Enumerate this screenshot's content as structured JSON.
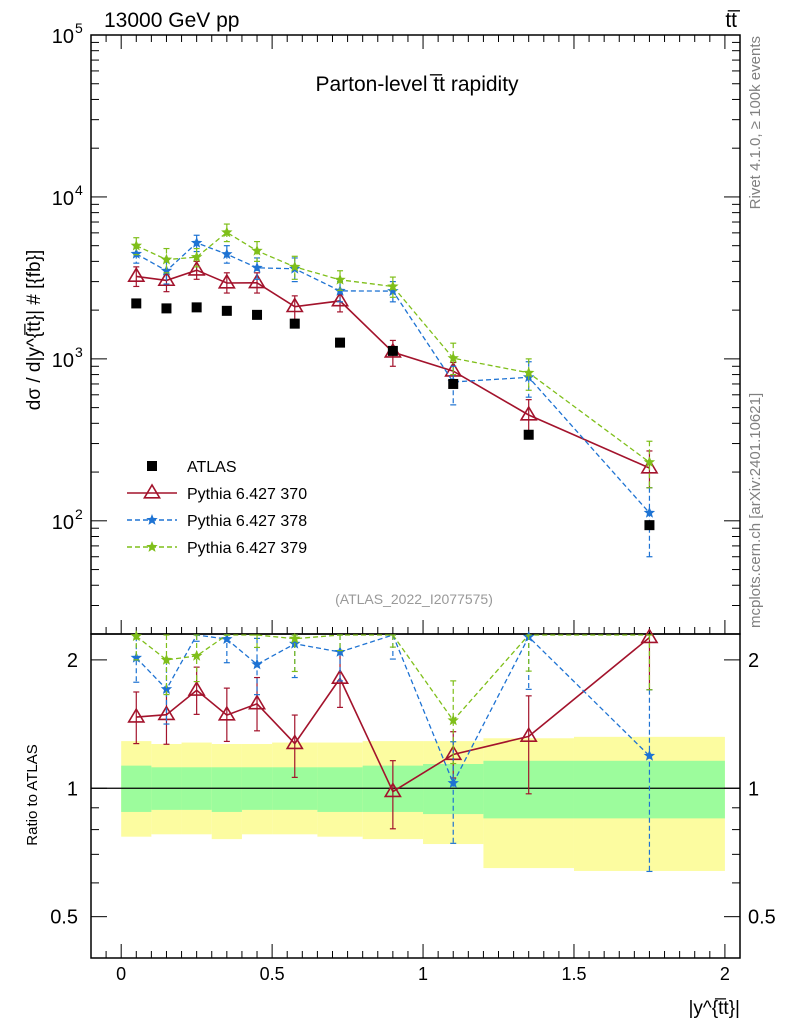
{
  "header": {
    "energy_label": "13000 GeV pp",
    "process_label": "tt̅",
    "rivet_label": "Rivet 4.1.0, ≥ 100k events",
    "source_label": "mcplots.cern.ch [arXiv:2401.10621]"
  },
  "chart_data": {
    "type": "line",
    "title": "Parton-level t̅t rapidity",
    "analysis_id": "(ATLAS_2022_I2077575)",
    "ylabel_main": "dσ / d|y^{t̅t}| # [{fb}]",
    "ylabel_ratio": "Ratio to ATLAS",
    "xlabel": "|y^{t̅t}|",
    "x_range": [
      -0.1,
      2.05
    ],
    "y_range_main": [
      20,
      100000
    ],
    "y_range_ratio": [
      0.4,
      2.3
    ],
    "x_ticks": [
      {
        "v": 0,
        "label": "0"
      },
      {
        "v": 0.5,
        "label": "0.5"
      },
      {
        "v": 1,
        "label": "1"
      },
      {
        "v": 1.5,
        "label": "1.5"
      },
      {
        "v": 2,
        "label": "2"
      }
    ],
    "y_ticks_main": [
      {
        "v": 100,
        "base": "10",
        "exp": "2"
      },
      {
        "v": 1000,
        "base": "10",
        "exp": "3"
      },
      {
        "v": 10000,
        "base": "10",
        "exp": "4"
      },
      {
        "v": 100000,
        "base": "10",
        "exp": "5"
      }
    ],
    "y_ticks_ratio": [
      {
        "v": 0.5,
        "label": "0.5"
      },
      {
        "v": 1,
        "label": "1"
      },
      {
        "v": 2,
        "label": "2"
      }
    ],
    "bins": [
      [
        0,
        0.1
      ],
      [
        0.1,
        0.2
      ],
      [
        0.2,
        0.3
      ],
      [
        0.3,
        0.4
      ],
      [
        0.4,
        0.5
      ],
      [
        0.5,
        0.65
      ],
      [
        0.65,
        0.8
      ],
      [
        0.8,
        1.0
      ],
      [
        1.0,
        1.2
      ],
      [
        1.2,
        1.5
      ],
      [
        1.5,
        2.0
      ]
    ],
    "x": [
      0.05,
      0.15,
      0.25,
      0.35,
      0.45,
      0.575,
      0.725,
      0.9,
      1.1,
      1.35,
      1.75
    ],
    "data": {
      "name": "ATLAS",
      "values": [
        2200,
        2050,
        2080,
        1980,
        1870,
        1650,
        1260,
        1120,
        700,
        340,
        94
      ],
      "band_stat_up": [
        1.13,
        1.12,
        1.12,
        1.12,
        1.12,
        1.12,
        1.12,
        1.13,
        1.14,
        1.16,
        1.16
      ],
      "band_stat_dn": [
        0.88,
        0.89,
        0.89,
        0.88,
        0.89,
        0.89,
        0.88,
        0.88,
        0.87,
        0.85,
        0.85
      ],
      "band_tot_up": [
        1.29,
        1.27,
        1.28,
        1.27,
        1.27,
        1.28,
        1.28,
        1.29,
        1.29,
        1.31,
        1.32
      ],
      "band_tot_dn": [
        0.77,
        0.78,
        0.78,
        0.76,
        0.78,
        0.78,
        0.77,
        0.76,
        0.74,
        0.65,
        0.64
      ]
    },
    "series": [
      {
        "name": "Pythia 6.427 370",
        "color": "#a3132c",
        "marker": "triangle",
        "dash": "",
        "values": [
          3230,
          3050,
          3530,
          2940,
          2950,
          2100,
          2280,
          1100,
          840,
          450,
          212
        ],
        "err_up": [
          3700,
          3500,
          4000,
          3400,
          3400,
          2450,
          2650,
          1300,
          950,
          560,
          270
        ],
        "err_dn": [
          2800,
          2600,
          3100,
          2550,
          2550,
          1750,
          1950,
          900,
          740,
          330,
          160
        ]
      },
      {
        "name": "Pythia 6.427 378",
        "color": "#1e73d3",
        "marker": "star",
        "dash": "5,3",
        "values": [
          4450,
          3500,
          5200,
          4430,
          3650,
          3600,
          2630,
          2620,
          720,
          770,
          112
        ],
        "err_up": [
          5000,
          4100,
          5800,
          5000,
          4200,
          4200,
          3000,
          3000,
          900,
          960,
          160
        ],
        "err_dn": [
          3900,
          2900,
          4600,
          3900,
          3100,
          3000,
          2250,
          2250,
          520,
          580,
          60
        ]
      },
      {
        "name": "Pythia 6.427 379",
        "color": "#7fbf1a",
        "marker": "star",
        "dash": "5,3",
        "values": [
          5000,
          4100,
          4250,
          6040,
          4650,
          3700,
          3080,
          2800,
          1010,
          820,
          230
        ],
        "err_up": [
          5600,
          4800,
          4800,
          6800,
          5300,
          4300,
          3500,
          3200,
          1250,
          1000,
          310
        ],
        "err_dn": [
          4400,
          3400,
          3700,
          5300,
          4000,
          3100,
          2650,
          2400,
          800,
          640,
          160
        ]
      }
    ],
    "legend": {
      "position": "lower-left",
      "entries": [
        "ATLAS",
        "Pythia 6.427 370",
        "Pythia 6.427 378",
        "Pythia 6.427 379"
      ]
    },
    "colors": {
      "data": "#000000",
      "band_stat": "#9cfc9c",
      "band_tot": "#fcfca0",
      "title": "#000000",
      "analysis_id": "#999999",
      "side_label": "#808080"
    }
  }
}
